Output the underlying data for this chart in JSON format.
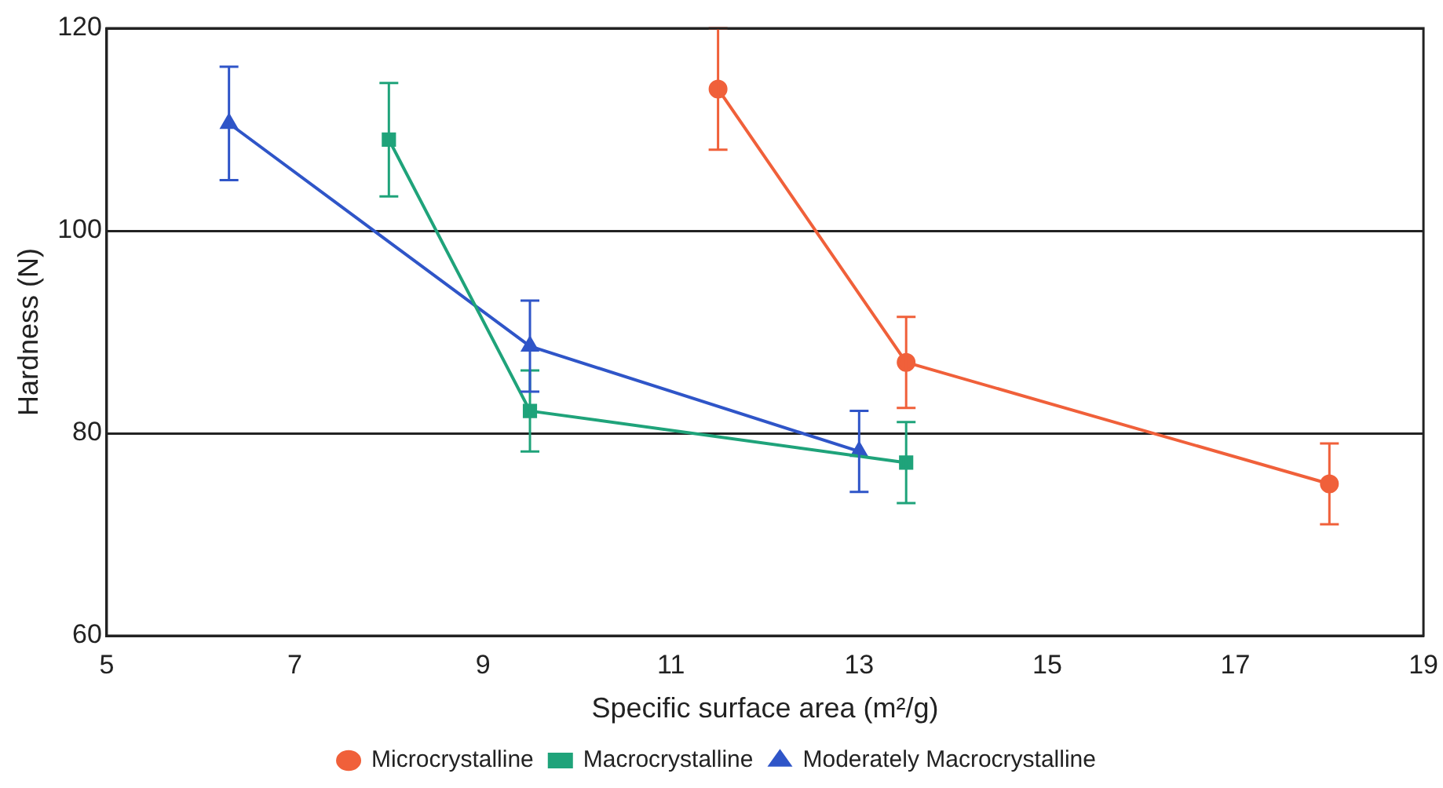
{
  "chart_data": {
    "type": "line",
    "xlabel": "Specific surface area (m²/g)",
    "ylabel": "Hardness (N)",
    "xlim": [
      5,
      19
    ],
    "xticks": [
      5,
      7,
      9,
      11,
      13,
      15,
      17,
      19
    ],
    "ylim": [
      60,
      120
    ],
    "yticks": [
      60,
      80,
      100,
      120
    ],
    "grid": "y",
    "legend": "bottom",
    "series": [
      {
        "name": "Microcrystalline",
        "color": "#f0603a",
        "marker": "circle",
        "x": [
          11.5,
          13.5,
          18
        ],
        "values": [
          114,
          87,
          75
        ],
        "errors": [
          [
            108,
            120
          ],
          4.5,
          4
        ]
      },
      {
        "name": "Macrocrystalline",
        "color": "#1fa37a",
        "marker": "square",
        "x": [
          8,
          9.5,
          13.5
        ],
        "values": [
          109,
          82.2,
          77.1
        ],
        "errors": [
          5.6,
          4,
          4
        ]
      },
      {
        "name": "Moderately Macrocrystalline",
        "color": "#2f55c8",
        "marker": "triangle",
        "x": [
          6.3,
          9.5,
          13
        ],
        "values": [
          110.6,
          88.6,
          78.2
        ],
        "errors": [
          5.6,
          4.5,
          4
        ]
      }
    ]
  }
}
